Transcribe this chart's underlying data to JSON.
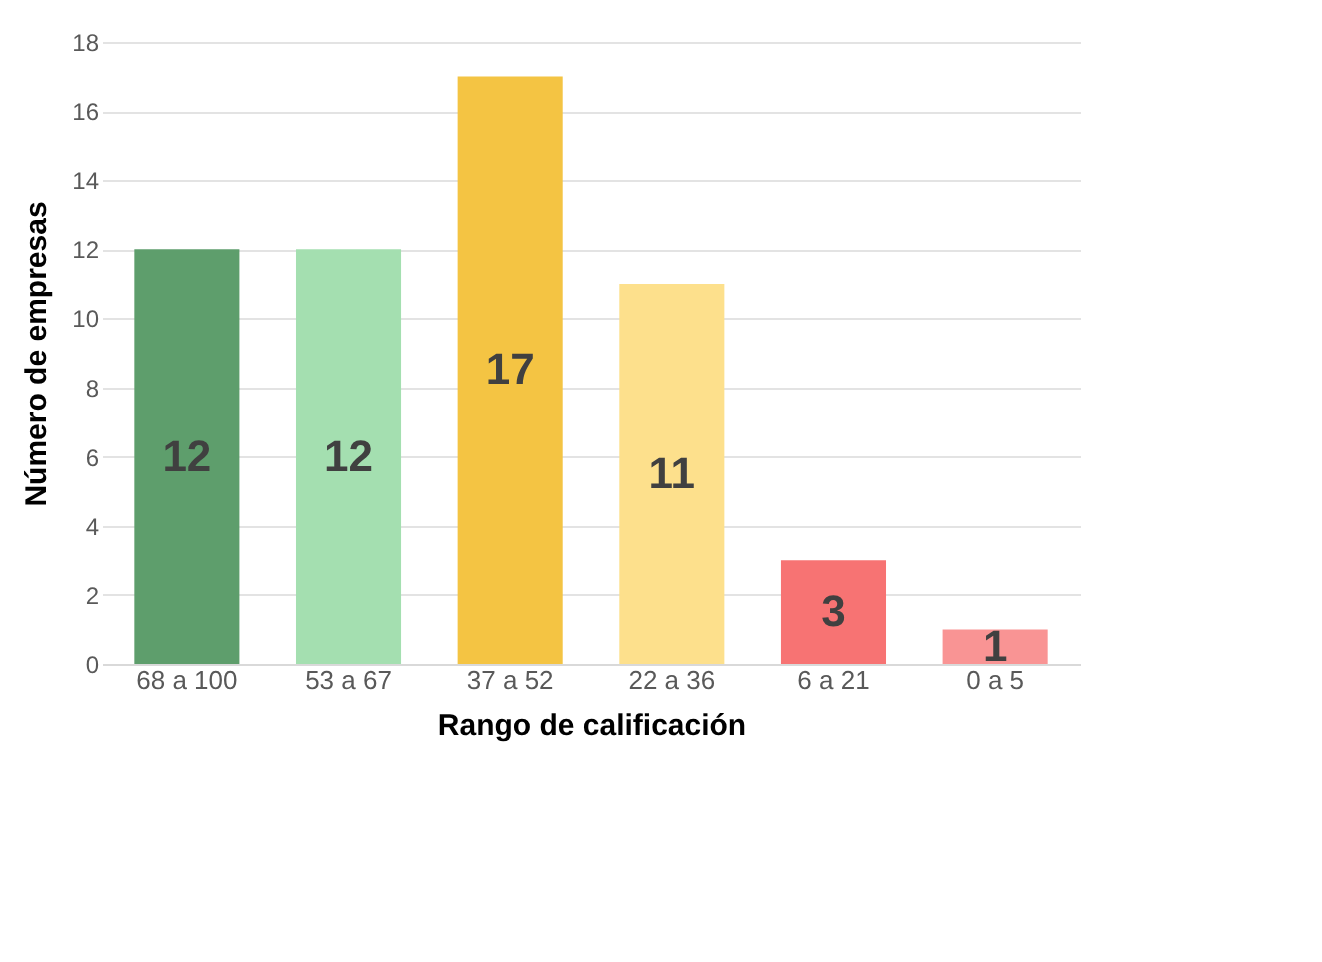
{
  "chart_data": {
    "type": "bar",
    "xlabel": "Rango de calificación",
    "ylabel": "Número de empresas",
    "categories": [
      "68 a 100",
      "53 a 67",
      "37 a 52",
      "22 a 36",
      "6 a 21",
      "0 a 5"
    ],
    "values": [
      12,
      12,
      17,
      11,
      3,
      1
    ],
    "colors": [
      "#5e9e6c",
      "#a4dfb0",
      "#f4c443",
      "#fde08c",
      "#f77373",
      "#f99494"
    ],
    "ylim": [
      0,
      18
    ],
    "yticks": [
      0,
      2,
      4,
      6,
      8,
      10,
      12,
      14,
      16,
      18
    ],
    "grid": "y",
    "data_labels": true,
    "legend": false
  }
}
